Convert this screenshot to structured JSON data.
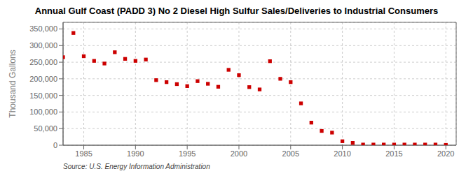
{
  "chart_data": {
    "type": "scatter",
    "title": "Annual Gulf Coast (PADD 3) No 2 Diesel High Sulfur Sales/Deliveries to Industrial Consumers",
    "y_label": "Thousand Gallons",
    "annotations": [
      "Source: U.S. Energy Information Administration"
    ],
    "x": [
      1983,
      1984,
      1985,
      1986,
      1987,
      1988,
      1989,
      1990,
      1991,
      1992,
      1993,
      1994,
      1995,
      1996,
      1997,
      1998,
      1999,
      2000,
      2001,
      2002,
      2003,
      2004,
      2005,
      2006,
      2007,
      2008,
      2009,
      2010,
      2011,
      2012,
      2013,
      2014,
      2015,
      2016,
      2017,
      2018,
      2019,
      2020
    ],
    "values": [
      265000,
      338000,
      268000,
      254000,
      246000,
      280000,
      260000,
      254000,
      258000,
      196000,
      190000,
      184000,
      178000,
      193000,
      185000,
      176000,
      227000,
      211000,
      175000,
      168000,
      253000,
      200000,
      190000,
      126000,
      68000,
      43000,
      38000,
      12000,
      7000,
      2000,
      2000,
      2000,
      2000,
      2000,
      2000,
      2000,
      2000,
      1000
    ],
    "color": "#cc0000",
    "marker": "square",
    "xlim": [
      1983,
      2021
    ],
    "ylim": [
      0,
      370000
    ],
    "xticks": [
      1985,
      1990,
      1995,
      2000,
      2005,
      2010,
      2015,
      2020
    ],
    "yticks": [
      0,
      {
        "value": 50000,
        "label": "50,000"
      },
      {
        "value": 100000,
        "label": "100,000"
      },
      {
        "value": 150000,
        "label": "150,000"
      },
      {
        "value": 200000,
        "label": "200,000"
      },
      {
        "value": 250000,
        "label": "250,000"
      },
      {
        "value": 300000,
        "label": "300,000"
      },
      {
        "value": 350000,
        "label": "350,000"
      }
    ],
    "grid": true
  }
}
